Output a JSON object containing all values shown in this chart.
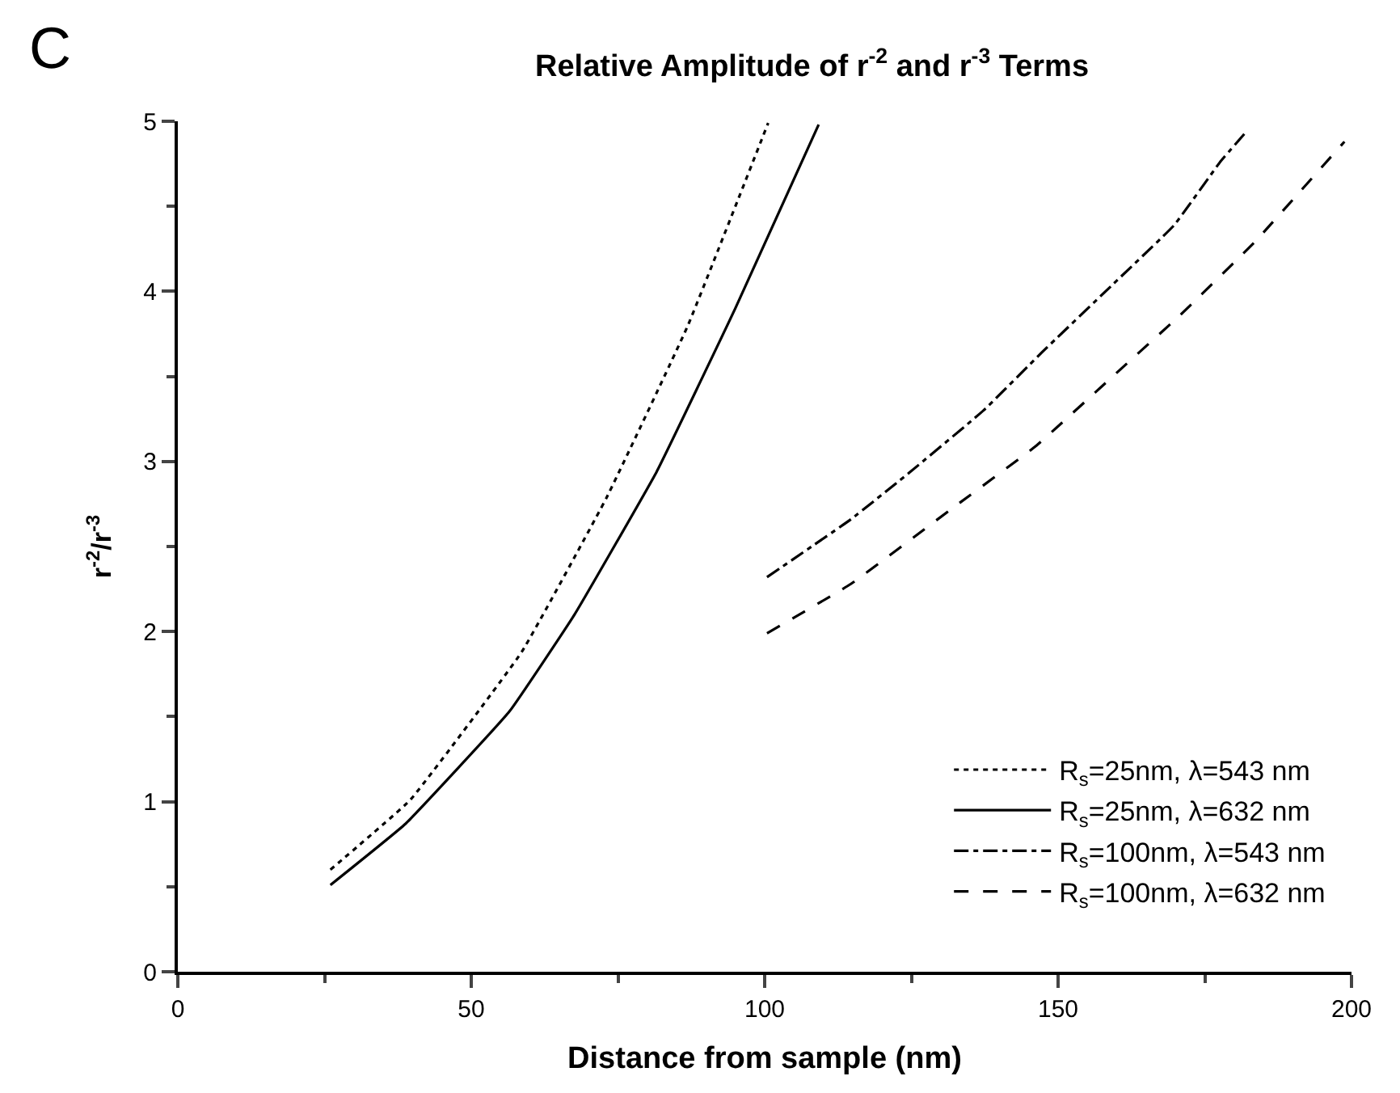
{
  "chart_data": {
    "type": "line",
    "title": "Relative Amplitude of r$^{-2}$ and r$^{-3}$ Terms",
    "xlabel": "Distance from sample (nm)",
    "ylabel": "r$^{-2}$/r$^{-3}$",
    "annotations": [
      "C"
    ],
    "xlim": [
      0,
      200
    ],
    "xticks": [
      0,
      50,
      100,
      150,
      200
    ],
    "ylim": [
      0,
      5
    ],
    "yticks": [
      0,
      1,
      2,
      3,
      4,
      5
    ],
    "legend": "bottom right",
    "marker": "none",
    "series": [
      {
        "name": "R$_{s}$=25nm, λ=543 nm",
        "color": "#000000",
        "line_style": "dotted",
        "x": [
          26,
          39.6,
          58.6,
          73.1,
          86.8,
          100.6
        ],
        "values": [
          0.6,
          1.01,
          1.88,
          2.79,
          3.79,
          4.99
        ]
      },
      {
        "name": "R$_{s}$=25nm, λ=632 nm",
        "color": "#000000",
        "line_style": "solid",
        "x": [
          26,
          38.8,
          56.5,
          67.6,
          81.6,
          95,
          109.2
        ],
        "values": [
          0.51,
          0.87,
          1.53,
          2.1,
          2.94,
          3.9,
          4.98
        ]
      },
      {
        "name": "R$_{s}$=100nm, λ=543 nm",
        "color": "#000000",
        "line_style": "dashdot",
        "x": [
          100.4,
          114.7,
          124.5,
          137.3,
          147.2,
          159,
          169.8,
          177.6,
          182.1
        ],
        "values": [
          2.32,
          2.66,
          2.93,
          3.3,
          3.64,
          4.03,
          4.39,
          4.76,
          4.94
        ]
      },
      {
        "name": "R$_{s}$=100nm, λ=632 nm",
        "color": "#000000",
        "line_style": "dashed",
        "x": [
          100.4,
          114.7,
          131.4,
          146.2,
          160.9,
          170.8,
          183.5,
          198.8
        ],
        "values": [
          1.99,
          2.28,
          2.71,
          3.09,
          3.55,
          3.86,
          4.29,
          4.88
        ]
      }
    ]
  }
}
